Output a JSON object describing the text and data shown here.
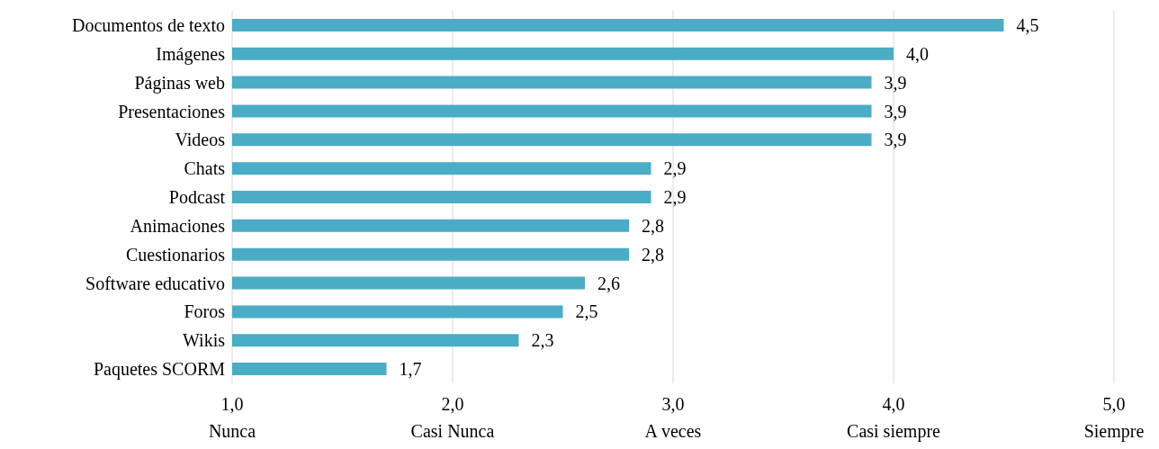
{
  "chart_data": {
    "type": "bar",
    "orientation": "horizontal",
    "categories": [
      "Documentos de texto",
      "Imágenes",
      "Páginas web",
      "Presentaciones",
      "Videos",
      "Chats",
      "Podcast",
      "Animaciones",
      "Cuestionarios",
      "Software educativo",
      "Foros",
      "Wikis",
      "Paquetes SCORM"
    ],
    "values": [
      4.5,
      4.0,
      3.9,
      3.9,
      3.9,
      2.9,
      2.9,
      2.8,
      2.8,
      2.6,
      2.5,
      2.3,
      1.7
    ],
    "value_labels": [
      "4,5",
      "4,0",
      "3,9",
      "3,9",
      "3,9",
      "2,9",
      "2,9",
      "2,8",
      "2,8",
      "2,6",
      "2,5",
      "2,3",
      "1,7"
    ],
    "color": "#4bacc6",
    "xlim": [
      1,
      5
    ],
    "xticks": [
      {
        "value": 1,
        "label": "1,0\nNunca"
      },
      {
        "value": 2,
        "label": "2,0\nCasi Nunca"
      },
      {
        "value": 3,
        "label": "3,0\nA veces"
      },
      {
        "value": 4,
        "label": "4,0\nCasi siempre"
      },
      {
        "value": 5,
        "label": "5,0\nSiempre"
      }
    ],
    "grid": "x",
    "legend": false
  }
}
